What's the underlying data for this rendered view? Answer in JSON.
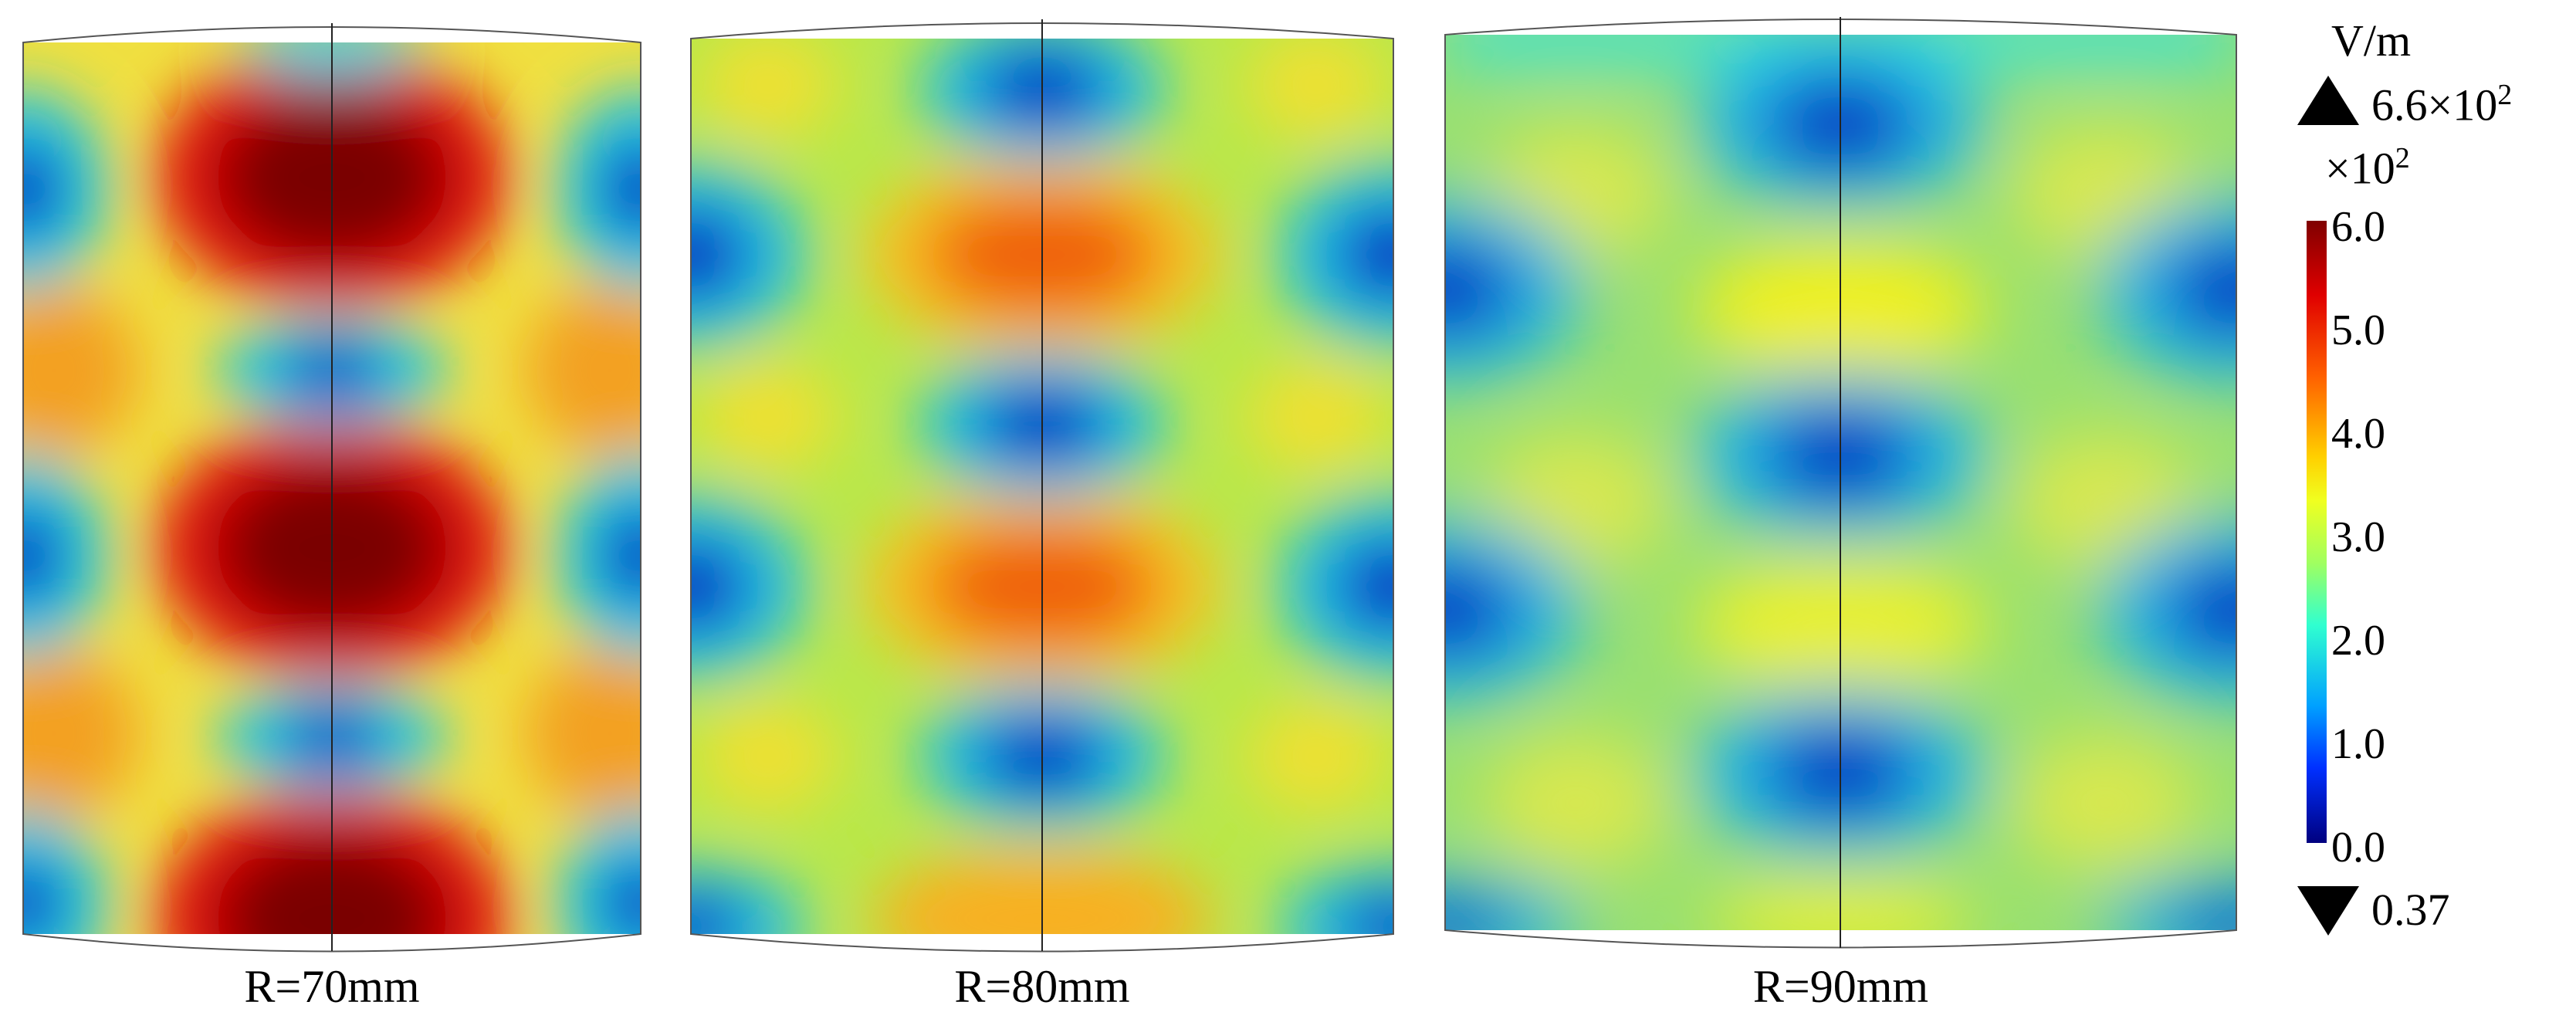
{
  "panels": [
    {
      "label": "R=70mm"
    },
    {
      "label": "R=80mm"
    },
    {
      "label": "R=90mm"
    }
  ],
  "legend": {
    "unit": "V/m",
    "max_label": "6.6×10",
    "max_exp": "2",
    "multiplier": "×10",
    "multiplier_exp": "2",
    "min_label": "0.37",
    "ticks": [
      "6.0",
      "5.0",
      "4.0",
      "3.0",
      "2.0",
      "1.0",
      "0.0"
    ],
    "range": [
      0.0,
      6.0
    ],
    "colormap": "rainbow (blue-cyan-green-yellow-red-dark red)"
  }
}
